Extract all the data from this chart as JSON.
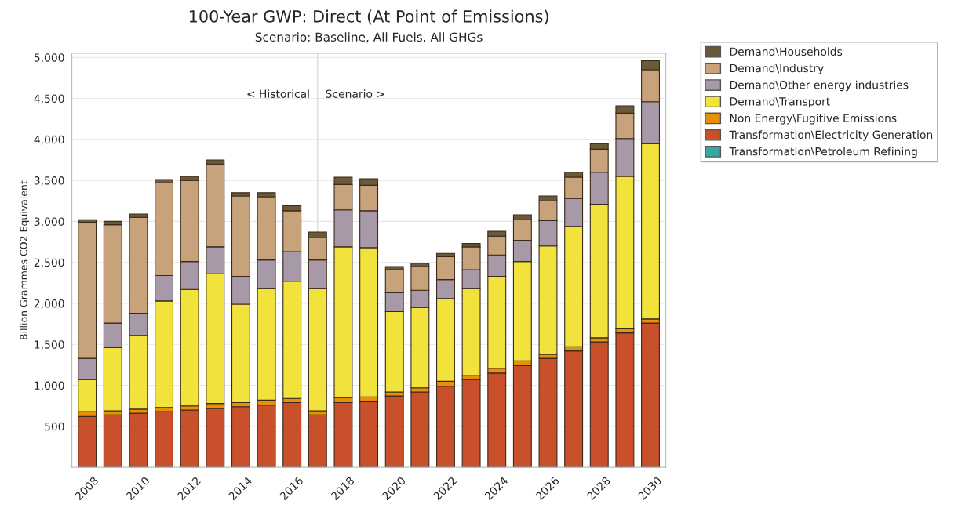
{
  "chart_data": {
    "type": "bar",
    "title": "100-Year GWP: Direct (At Point of Emissions)",
    "subtitle": "Scenario: Baseline, All Fuels, All GHGs",
    "ylabel": "Billion Grammes CO2 Equivalent",
    "x": [
      2008,
      2009,
      2010,
      2011,
      2012,
      2013,
      2014,
      2015,
      2016,
      2017,
      2018,
      2019,
      2020,
      2021,
      2022,
      2023,
      2024,
      2025,
      2026,
      2027,
      2028,
      2029,
      2030
    ],
    "stacked": true,
    "series": [
      {
        "name": "Transformation\\Petroleum Refining",
        "color": "#3aa6a0",
        "values": [
          0,
          0,
          0,
          0,
          0,
          0,
          0,
          0,
          0,
          0,
          0,
          0,
          0,
          0,
          0,
          0,
          0,
          0,
          0,
          0,
          0,
          0,
          0
        ]
      },
      {
        "name": "Transformation\\Electricity Generation",
        "color": "#c8502a",
        "values": [
          620,
          640,
          660,
          680,
          700,
          720,
          740,
          760,
          790,
          640,
          790,
          800,
          870,
          920,
          990,
          1070,
          1150,
          1240,
          1330,
          1420,
          1530,
          1640,
          1760
        ]
      },
      {
        "name": "Non Energy\\Fugitive Emissions",
        "color": "#e8900a",
        "values": [
          60,
          50,
          50,
          50,
          50,
          60,
          50,
          60,
          50,
          50,
          60,
          60,
          50,
          50,
          60,
          50,
          60,
          60,
          50,
          50,
          50,
          50,
          50
        ]
      },
      {
        "name": "Demand\\Transport",
        "color": "#f2e33c",
        "values": [
          390,
          770,
          900,
          1300,
          1420,
          1580,
          1200,
          1360,
          1430,
          1490,
          1840,
          1820,
          980,
          980,
          1010,
          1060,
          1120,
          1210,
          1320,
          1470,
          1630,
          1860,
          2140
        ]
      },
      {
        "name": "Demand\\Other energy industries",
        "color": "#a899a8",
        "values": [
          260,
          300,
          270,
          310,
          340,
          330,
          340,
          350,
          360,
          350,
          450,
          450,
          230,
          210,
          230,
          230,
          260,
          260,
          310,
          340,
          390,
          460,
          510
        ]
      },
      {
        "name": "Demand\\Industry",
        "color": "#c8a27a",
        "values": [
          1660,
          1200,
          1170,
          1130,
          990,
          1010,
          980,
          770,
          500,
          270,
          310,
          310,
          280,
          290,
          280,
          280,
          230,
          250,
          240,
          260,
          280,
          310,
          390
        ]
      },
      {
        "name": "Demand\\Households",
        "color": "#6b5a3a",
        "values": [
          30,
          40,
          40,
          40,
          50,
          50,
          40,
          50,
          60,
          70,
          90,
          80,
          40,
          40,
          40,
          40,
          60,
          60,
          60,
          60,
          70,
          90,
          110
        ]
      }
    ],
    "xlim": [
      2007.4,
      2030.6
    ],
    "xticks": [
      2008,
      2010,
      2012,
      2014,
      2016,
      2018,
      2020,
      2022,
      2024,
      2026,
      2028,
      2030
    ],
    "ylim": [
      0,
      5050
    ],
    "yticks": [
      {
        "value": 500,
        "label": "500"
      },
      {
        "value": 1000,
        "label": "1,000"
      },
      {
        "value": 1500,
        "label": "1,500"
      },
      {
        "value": 2000,
        "label": "2,000"
      },
      {
        "value": 2500,
        "label": "2,500"
      },
      {
        "value": 3000,
        "label": "3,000"
      },
      {
        "value": 3500,
        "label": "3,500"
      },
      {
        "value": 4000,
        "label": "4,000"
      },
      {
        "value": 4500,
        "label": "4,500"
      },
      {
        "value": 5000,
        "label": "5,000"
      }
    ],
    "ref_lines": [
      {
        "axis": "x",
        "value": 2017,
        "color": "#d0d0d8"
      }
    ],
    "annotations": [
      "< Historical",
      "Scenario >"
    ],
    "grid": "y",
    "legend": "top right"
  }
}
